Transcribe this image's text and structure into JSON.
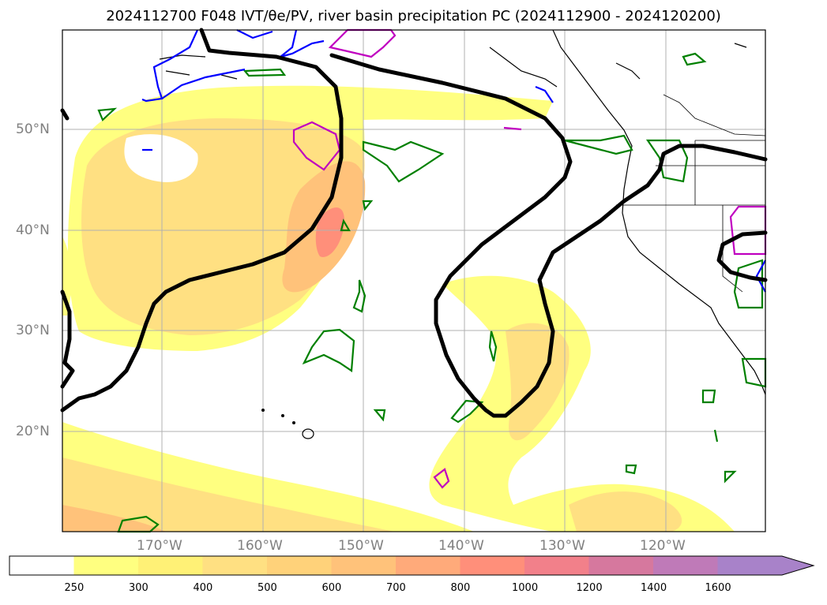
{
  "title": "2024112700 F048 IVT/θe/PV, river basin precipitation PC (2024112900 - 2024120200)",
  "map": {
    "lat_labels": [
      "50°N",
      "40°N",
      "30°N",
      "20°N"
    ],
    "lon_labels": [
      "170°W",
      "160°W",
      "150°W",
      "140°W",
      "130°W",
      "120°W"
    ]
  },
  "colorbar": {
    "levels": [
      "250",
      "300",
      "400",
      "500",
      "600",
      "700",
      "800",
      "1000",
      "1200",
      "1400",
      "1600"
    ],
    "colors": [
      "#ffff80",
      "#fff176",
      "#ffe082",
      "#ffd27a",
      "#ffc27a",
      "#ffaa7a",
      "#ff8f7a",
      "#f2808a",
      "#d6789e",
      "#bf7ab8",
      "#a882c9"
    ],
    "extend": "max"
  },
  "colors": {
    "ivt_fill_light": "#ffff80",
    "ivt_fill_mid": "#ffe082",
    "ivt_fill_strong": "#ffb27a",
    "theta_contour": "#000000",
    "pv_green": "#008000",
    "pv_blue": "#0000ff",
    "pv_magenta": "#c000c0",
    "coast": "#000000",
    "grid": "#b0b0b0"
  }
}
